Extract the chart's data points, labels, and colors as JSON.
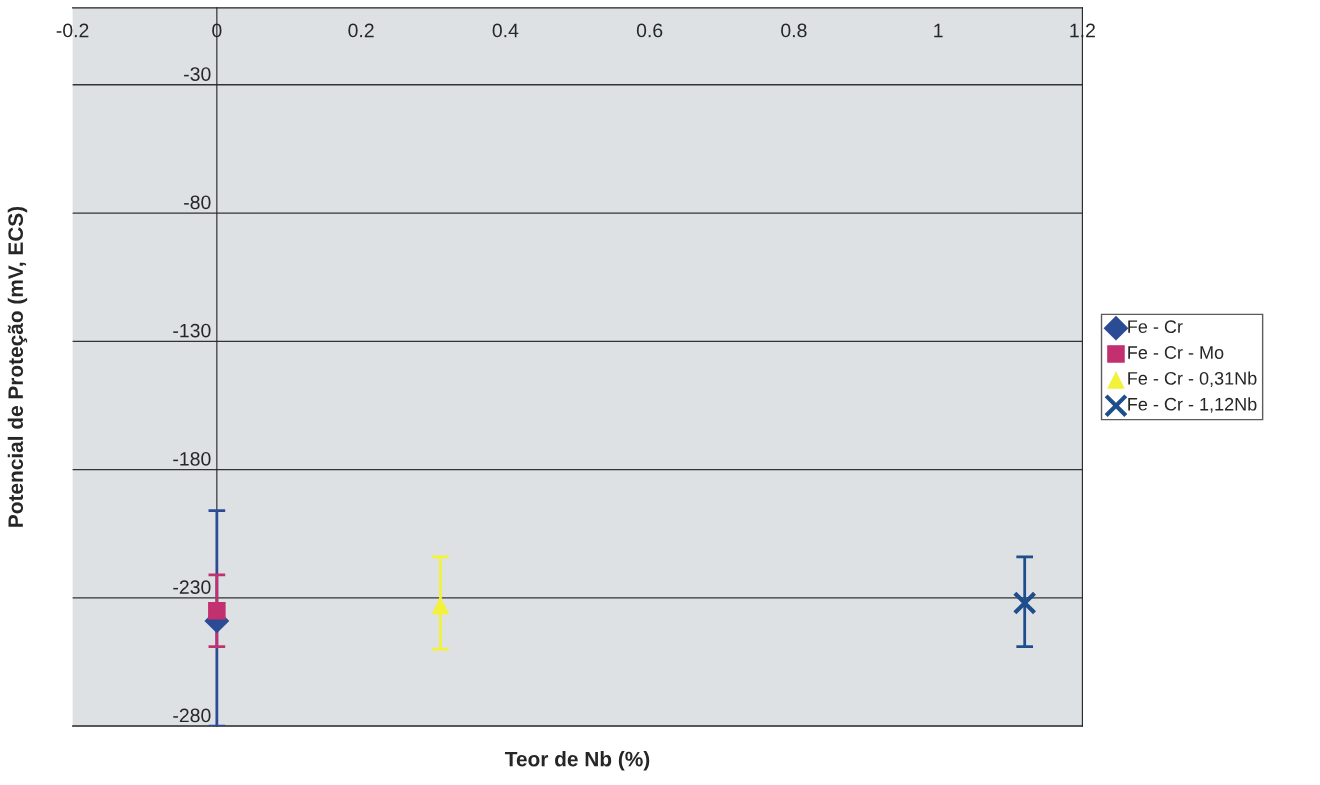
{
  "chart_data": {
    "type": "scatter",
    "xlabel": "Teor de Nb (%)",
    "ylabel": "Potencial de Proteção (mV, ECS)",
    "xlim": [
      -0.2,
      1.2
    ],
    "xticks": [
      -0.2,
      0,
      0.2,
      0.4,
      0.6,
      0.8,
      1,
      1.2
    ],
    "ylim": [
      -280,
      0
    ],
    "yticks": [
      -280,
      -230,
      -180,
      -130,
      -80,
      -30
    ],
    "grid": "y",
    "legend": "right",
    "series": [
      {
        "name": "Fe - Cr",
        "color": "#2b4b94",
        "marker": "diamond",
        "x": [
          0
        ],
        "values": [
          -239
        ],
        "errors": [
          [
            -280,
            -196
          ]
        ]
      },
      {
        "name": "Fe - Cr - Mo",
        "color": "#c2306f",
        "marker": "square",
        "x": [
          0
        ],
        "values": [
          -235
        ],
        "errors": [
          [
            -249,
            -221
          ]
        ]
      },
      {
        "name": "Fe - Cr - 0,31Nb",
        "color": "#f2f23a",
        "marker": "triangle",
        "x": [
          0.31
        ],
        "values": [
          -233
        ],
        "errors": [
          [
            -250,
            -214
          ]
        ]
      },
      {
        "name": "Fe - Cr - 1,12Nb",
        "color": "#1f4e8c",
        "marker": "cross",
        "x": [
          1.12
        ],
        "values": [
          -232
        ],
        "errors": [
          [
            -249,
            -214
          ]
        ]
      }
    ]
  }
}
